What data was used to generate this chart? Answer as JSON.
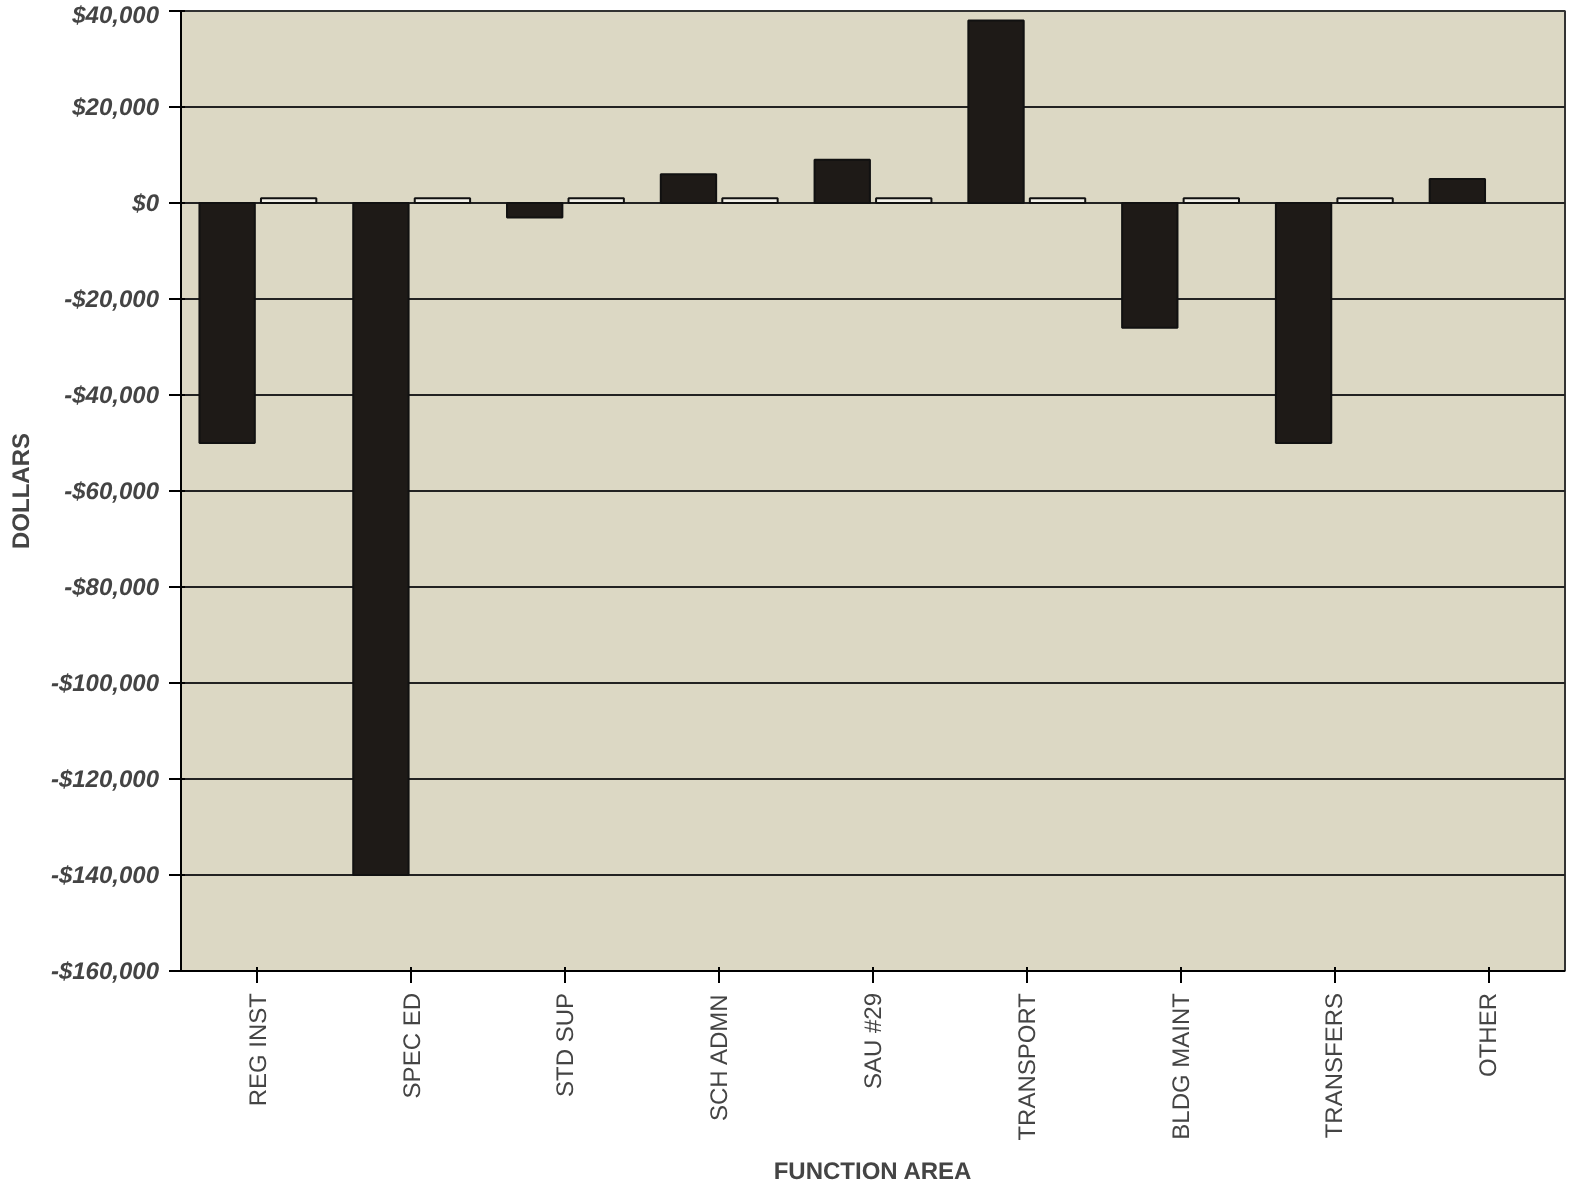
{
  "chart_data": {
    "type": "bar",
    "xlabel": "FUNCTION AREA",
    "ylabel": "DOLLARS",
    "categories": [
      "REG INST",
      "SPEC ED",
      "STD SUP",
      "SCH ADMN",
      "SAU #29",
      "TRANSPORT",
      "BLDG MAINT",
      "TRANSFERS",
      "OTHER"
    ],
    "series": [
      {
        "color": "#1e1a17",
        "values": [
          -50000,
          -140000,
          -3000,
          6000,
          9000,
          38000,
          -26000,
          -50000,
          5000
        ]
      },
      {
        "color": "#f4f2ea",
        "values": [
          1000,
          1000,
          1000,
          1000,
          1000,
          1000,
          1000,
          1000,
          null
        ]
      }
    ],
    "ylim": [
      -160000,
      40000
    ],
    "yticks": [
      {
        "value": 40000,
        "label": "$40,000"
      },
      {
        "value": 20000,
        "label": "$20,000"
      },
      {
        "value": 0,
        "label": "$0"
      },
      {
        "value": -20000,
        "label": "-$20,000"
      },
      {
        "value": -40000,
        "label": "-$40,000"
      },
      {
        "value": -60000,
        "label": "-$60,000"
      },
      {
        "value": -80000,
        "label": "-$80,000"
      },
      {
        "value": -100000,
        "label": "-$100,000"
      },
      {
        "value": -120000,
        "label": "-$120,000"
      },
      {
        "value": -140000,
        "label": "-$140,000"
      },
      {
        "value": -160000,
        "label": "-$160,000"
      }
    ],
    "grid": "y"
  }
}
